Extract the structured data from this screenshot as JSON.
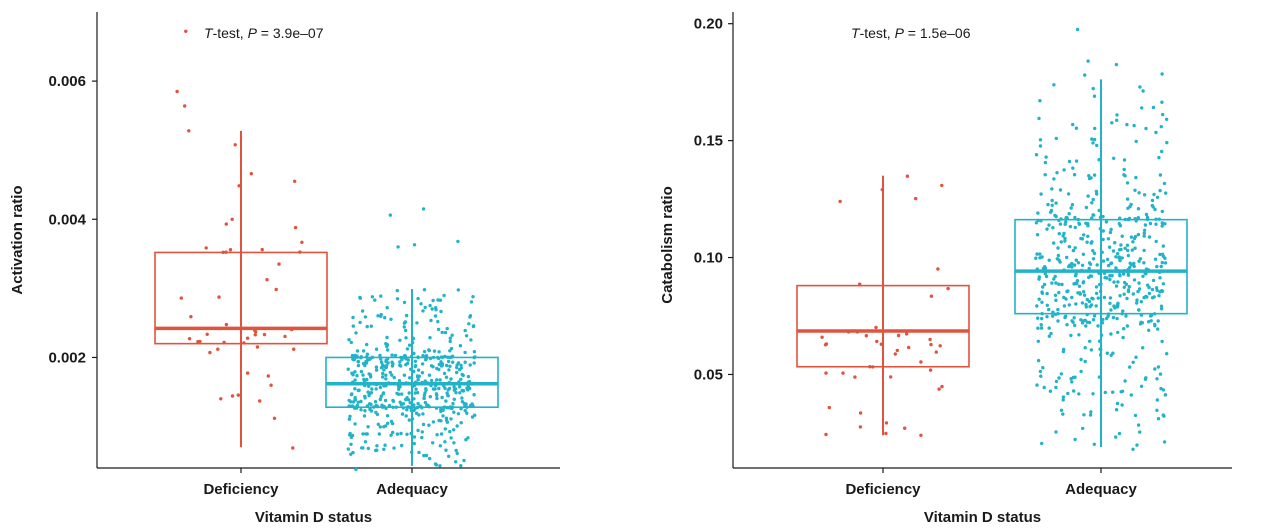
{
  "colors": {
    "deficiency": "#e0533d",
    "adequacy": "#22b3c9",
    "axis": "#1a1a1a"
  },
  "chart_data": [
    {
      "type": "boxplot",
      "xlabel": "Vitamin D status",
      "ylabel": "Activation ratio",
      "ylim": [
        0.0004,
        0.007
      ],
      "yticks": [
        0.002,
        0.004,
        0.006
      ],
      "ytick_labels": [
        "0.002",
        "0.004",
        "0.006"
      ],
      "grid": false,
      "annotation": {
        "test": "T",
        "rest": "-test, ",
        "p_letter": "P",
        "p_text": " = 3.9e–07"
      },
      "categories": [
        "Deficiency",
        "Adequacy"
      ],
      "boxes": [
        {
          "name": "Deficiency",
          "color": "#e0533d",
          "q1": 0.0022,
          "median": 0.00242,
          "q3": 0.00352,
          "whisker_low": 0.0007,
          "whisker_high": 0.00528,
          "n_points": 40,
          "seed": 11,
          "highlights": [
            0.00672,
            0.00585,
            0.00564,
            0.00528,
            0.00466,
            0.00455,
            0.004,
            0.00393,
            0.00388,
            0.00356,
            0.00069,
            0.00112
          ]
        },
        {
          "name": "Adequacy",
          "color": "#22b3c9",
          "q1": 0.00128,
          "median": 0.00162,
          "q3": 0.002,
          "whisker_low": 0.00043,
          "whisker_high": 0.00299,
          "n_points": 520,
          "seed": 23,
          "highlights": [
            0.00415,
            0.00406,
            0.00368,
            0.00363,
            0.0036,
            0.00038
          ]
        }
      ]
    },
    {
      "type": "boxplot",
      "xlabel": "Vitamin D status",
      "ylabel": "Catabolism ratio",
      "ylim": [
        0.01,
        0.205
      ],
      "yticks": [
        0.05,
        0.1,
        0.15,
        0.2
      ],
      "ytick_labels": [
        "0.05",
        "0.10",
        "0.15",
        "0.20"
      ],
      "grid": false,
      "annotation": {
        "test": "T",
        "rest": "-test, ",
        "p_letter": "P",
        "p_text": " = 1.5e–06"
      },
      "categories": [
        "Deficiency",
        "Adequacy"
      ],
      "boxes": [
        {
          "name": "Deficiency",
          "color": "#e0533d",
          "q1": 0.0533,
          "median": 0.0686,
          "q3": 0.088,
          "whisker_low": 0.024,
          "whisker_high": 0.135,
          "n_points": 40,
          "seed": 37,
          "highlights": [
            0.1348,
            0.129,
            0.124,
            0.024,
            0.027
          ]
        },
        {
          "name": "Adequacy",
          "color": "#22b3c9",
          "q1": 0.076,
          "median": 0.0942,
          "q3": 0.1162,
          "whisker_low": 0.019,
          "whisker_high": 0.1762,
          "n_points": 560,
          "seed": 53,
          "highlights": [
            0.1975,
            0.184,
            0.1825,
            0.1785,
            0.178,
            0.018
          ]
        }
      ]
    }
  ]
}
